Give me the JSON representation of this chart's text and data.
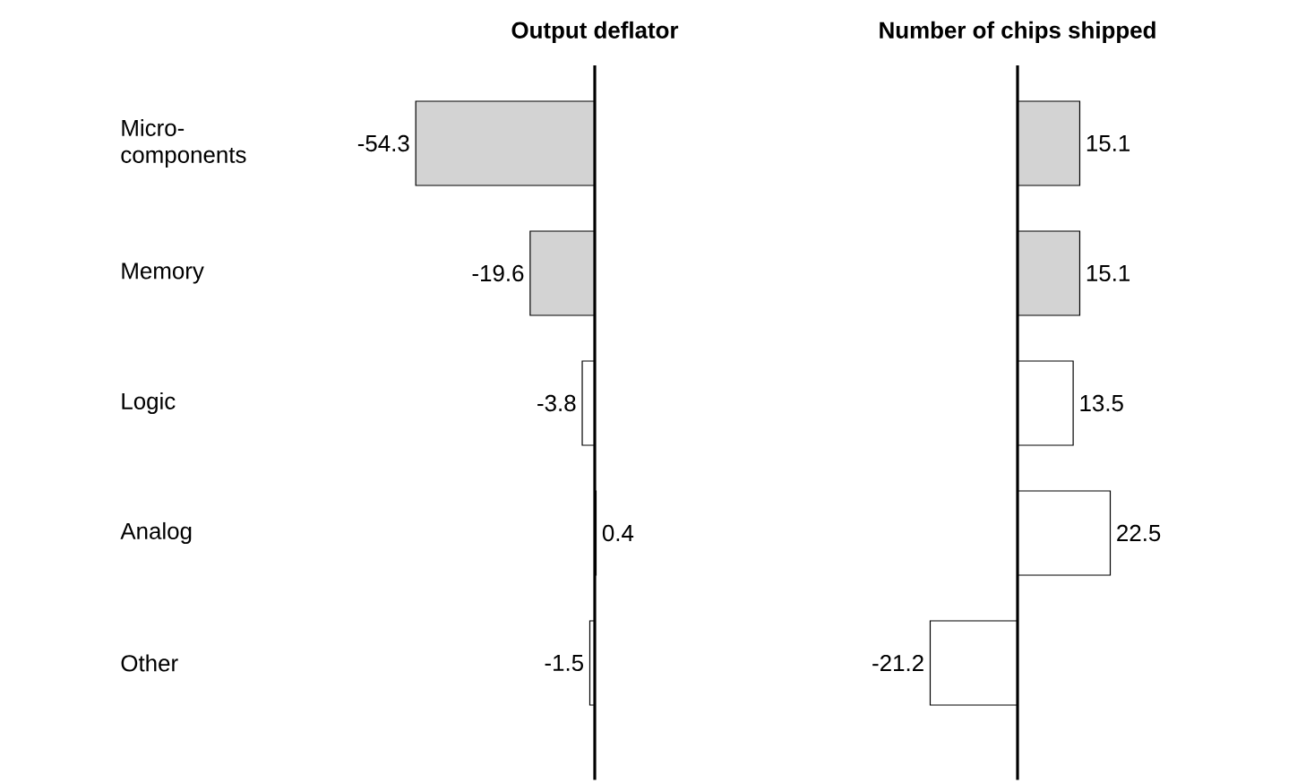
{
  "chart_data": [
    {
      "type": "bar",
      "orientation": "horizontal",
      "title": "Output deflator",
      "categories": [
        "Micro-components",
        "Memory",
        "Logic",
        "Analog",
        "Other"
      ],
      "series": [
        {
          "values": [
            -54.3,
            -19.6,
            -3.8,
            0.4,
            -1.5
          ],
          "colors": [
            "#d3d3d3",
            "#d3d3d3",
            "#ffffff",
            "#ffffff",
            "#ffffff"
          ]
        }
      ],
      "data_labels": true,
      "tick_labels": "y"
    },
    {
      "type": "bar",
      "orientation": "horizontal",
      "title": "Number of chips shipped",
      "categories": [
        null,
        null,
        null,
        null,
        null
      ],
      "series": [
        {
          "values": [
            15.1,
            15.1,
            13.5,
            22.5,
            -21.2
          ],
          "colors": [
            "#d3d3d3",
            "#d3d3d3",
            "#ffffff",
            "#ffffff",
            "#ffffff"
          ]
        }
      ],
      "data_labels": true
    }
  ]
}
